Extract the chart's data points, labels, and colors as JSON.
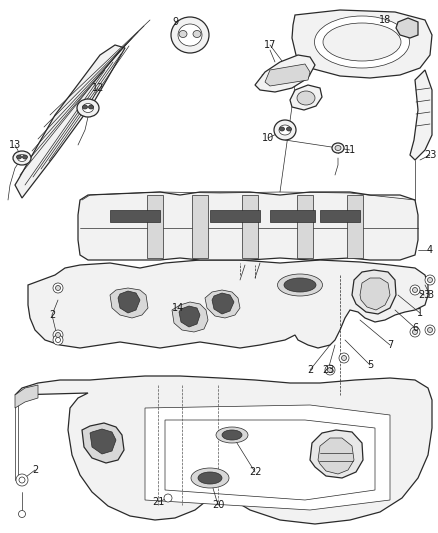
{
  "background_color": "#ffffff",
  "line_color": "#2a2a2a",
  "text_color": "#1a1a1a",
  "figsize": [
    4.38,
    5.33
  ],
  "dpi": 100,
  "gray_fill": "#d8d8d8",
  "light_fill": "#f2f2f2",
  "mid_fill": "#e8e8e8",
  "dark_fill": "#555555",
  "label_fs": 7.0
}
